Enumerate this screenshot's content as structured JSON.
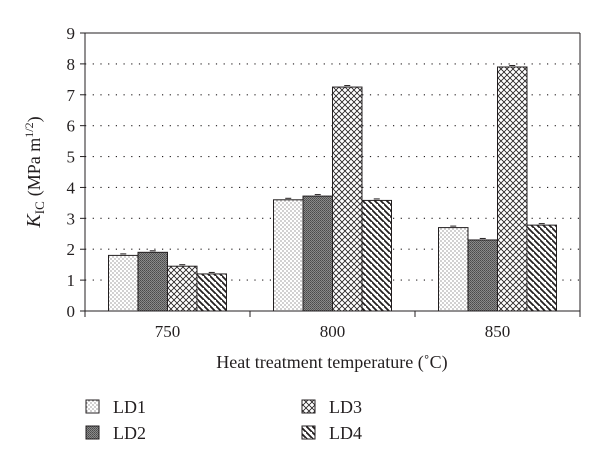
{
  "chart_data": {
    "type": "bar",
    "categories": [
      "750",
      "800",
      "850"
    ],
    "series": [
      {
        "name": "LD1",
        "values": [
          1.8,
          3.6,
          2.7
        ]
      },
      {
        "name": "LD2",
        "values": [
          1.9,
          3.72,
          2.3
        ]
      },
      {
        "name": "LD3",
        "values": [
          1.45,
          7.25,
          7.9
        ]
      },
      {
        "name": "LD4",
        "values": [
          1.2,
          3.58,
          2.78
        ]
      }
    ],
    "xlabel": "Heat treatment temperature (˚C)",
    "ylabel": {
      "symbol": "K",
      "subscript": "IC",
      "unit": "(MPa m",
      "exponent": "1/2",
      "close": ")"
    },
    "ylim": [
      0,
      9
    ],
    "yticks": [
      "0",
      "1",
      "2",
      "3",
      "4",
      "5",
      "6",
      "7",
      "8",
      "9"
    ],
    "grid": "horizontal dotted",
    "legend_position": "bottom",
    "error_bars": "small caps on bars"
  }
}
